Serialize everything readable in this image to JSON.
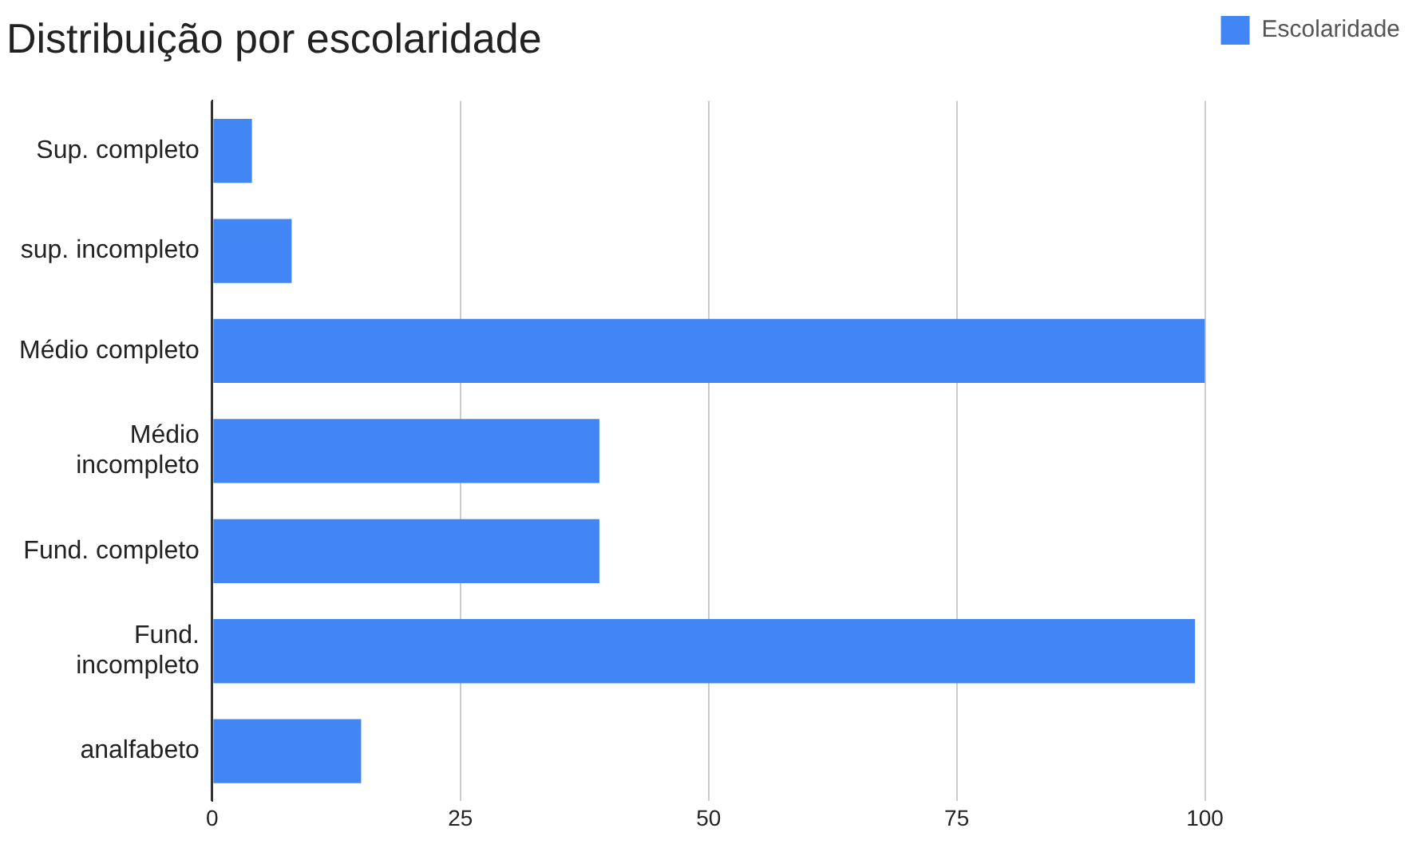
{
  "chart_data": {
    "type": "bar",
    "title": "Distribuição por escolaridade",
    "orientation": "horizontal",
    "categories": [
      "Sup. completo",
      "sup. incompleto",
      "Médio completo",
      "Médio incompleto",
      "Fund. completo",
      "Fund. incompleto",
      "analfabeto"
    ],
    "series": [
      {
        "name": "Escolaridade",
        "color": "#4285f4",
        "values": [
          4,
          8,
          100,
          39,
          39,
          99,
          15
        ]
      }
    ],
    "xlim": [
      0,
      100
    ],
    "xticks": [
      0,
      25,
      50,
      75,
      100
    ],
    "grid": "x",
    "legend": "top right"
  }
}
